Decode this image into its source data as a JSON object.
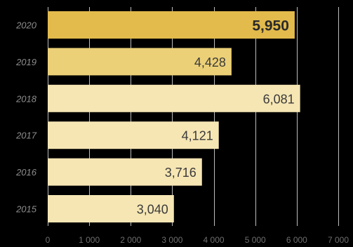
{
  "chart_data": {
    "type": "bar",
    "orientation": "horizontal",
    "categories": [
      "2020",
      "2019",
      "2018",
      "2017",
      "2016",
      "2015"
    ],
    "values": [
      5950,
      4428,
      6081,
      4121,
      3716,
      3040
    ],
    "value_labels": [
      "5,950",
      "4,428",
      "6,081",
      "4,121",
      "3,716",
      "3,040"
    ],
    "highlight_index": 0,
    "xlim": [
      0,
      7000
    ],
    "x_ticks": [
      0,
      1000,
      2000,
      3000,
      4000,
      5000,
      6000,
      7000
    ],
    "x_tick_labels": [
      "0",
      "1 000",
      "2 000",
      "3 000",
      "4 000",
      "5 000",
      "6 000",
      "7 000"
    ],
    "grid": true,
    "title": "",
    "xlabel": "",
    "ylabel": "",
    "colors": {
      "background": "#000000",
      "bars": [
        "#e3bb4c",
        "#ecd077",
        "#f6e6b4",
        "#f6e6b4",
        "#f6e6b4",
        "#f6e6b4"
      ],
      "gridline": "#bdbdbd"
    }
  }
}
